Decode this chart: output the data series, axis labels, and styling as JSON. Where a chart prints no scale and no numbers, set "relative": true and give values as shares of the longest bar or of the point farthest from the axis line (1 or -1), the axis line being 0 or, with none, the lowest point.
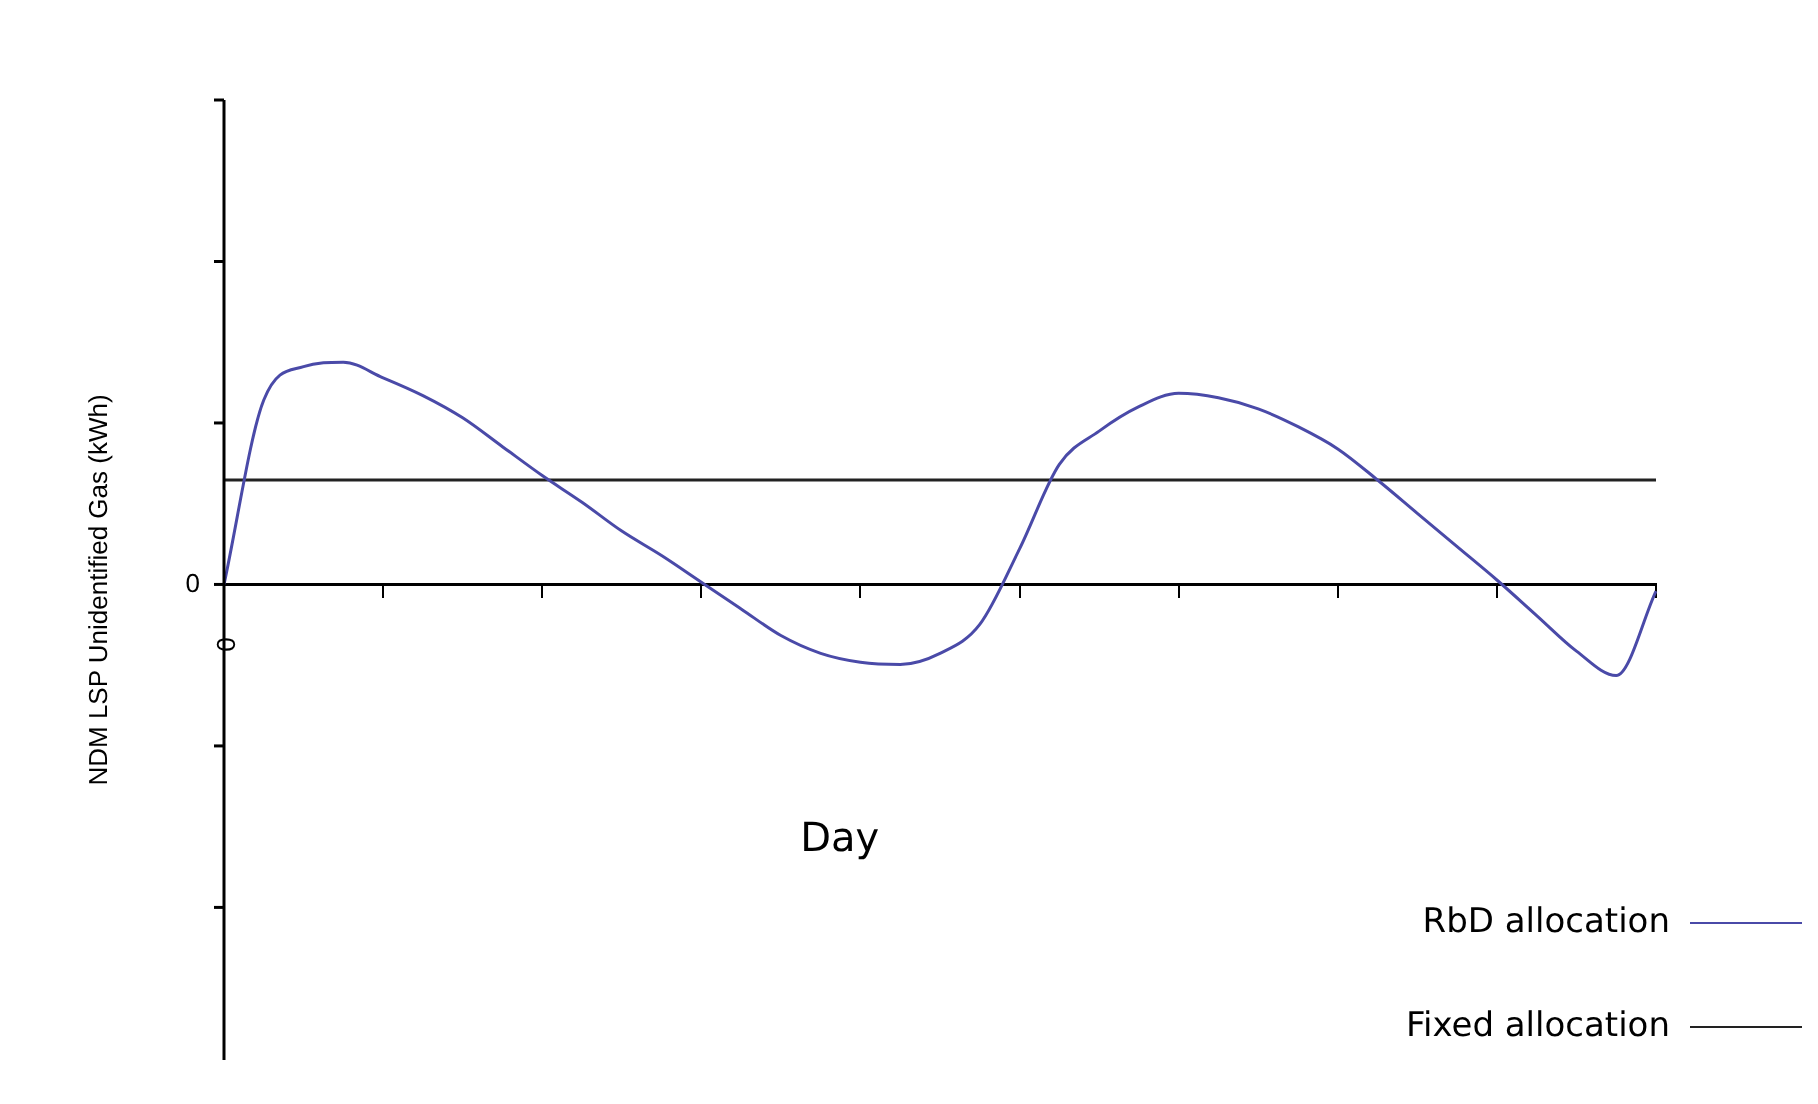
{
  "chart_data": {
    "type": "line",
    "relative": true,
    "xlabel": "Day",
    "ylabel": "NDM LSP Unidentified Gas (kWh)",
    "annotations": [
      "0",
      "0"
    ],
    "legend": "bottom right",
    "grid": false,
    "marker": "none",
    "categories": [
      null,
      null,
      null,
      null,
      null,
      null,
      null,
      null,
      null,
      null,
      null,
      null,
      null,
      null,
      null,
      null,
      null,
      null,
      null,
      null,
      null,
      null,
      null,
      null,
      null,
      null,
      null,
      null,
      null,
      null,
      null,
      null,
      null,
      null,
      null,
      null,
      null
    ],
    "series": [
      {
        "name": "RbD allocation",
        "color": "#4a4aa8",
        "values": [
          0,
          0.83,
          0.98,
          1,
          0.93,
          0.85,
          0.75,
          0.62,
          0.49,
          0.37,
          0.24,
          0.13,
          0.01,
          -0.11,
          -0.23,
          -0.31,
          -0.35,
          -0.36,
          -0.31,
          -0.18,
          0.16,
          0.54,
          0.69,
          0.8,
          0.86,
          0.84,
          0.79,
          0.71,
          0.61,
          0.47,
          0.32,
          0.17,
          0.02,
          -0.14,
          -0.3,
          -0.41,
          -0.03
        ]
      },
      {
        "name": "Fixed allocation",
        "color": "#222222",
        "values": [
          0.47,
          0.47,
          0.47,
          0.47,
          0.47,
          0.47,
          0.47,
          0.47,
          0.47,
          0.47,
          0.47,
          0.47,
          0.47,
          0.47,
          0.47,
          0.47,
          0.47,
          0.47,
          0.47,
          0.47,
          0.47,
          0.47,
          0.47,
          0.47,
          0.47,
          0.47,
          0.47,
          0.47,
          0.47,
          0.47,
          0.47,
          0.47,
          0.47,
          0.47,
          0.47,
          0.47,
          0.47
        ]
      }
    ]
  }
}
